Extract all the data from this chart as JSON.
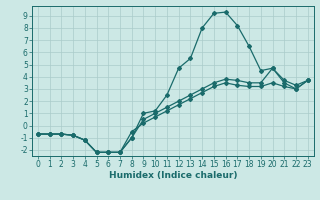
{
  "title": "",
  "xlabel": "Humidex (Indice chaleur)",
  "bg_color": "#cce8e5",
  "grid_color": "#aaccca",
  "line_color": "#1a6b6b",
  "xlim": [
    -0.5,
    23.5
  ],
  "ylim": [
    -2.5,
    9.8
  ],
  "xticks": [
    0,
    1,
    2,
    3,
    4,
    5,
    6,
    7,
    8,
    9,
    10,
    11,
    12,
    13,
    14,
    15,
    16,
    17,
    18,
    19,
    20,
    21,
    22,
    23
  ],
  "yticks": [
    -2,
    -1,
    0,
    1,
    2,
    3,
    4,
    5,
    6,
    7,
    8,
    9
  ],
  "line1_x": [
    0,
    1,
    2,
    3,
    4,
    5,
    6,
    7,
    8,
    9,
    10,
    11,
    12,
    13,
    14,
    15,
    16,
    17,
    18,
    19,
    20,
    21,
    22,
    23
  ],
  "line1_y": [
    -0.7,
    -0.7,
    -0.7,
    -0.8,
    -1.2,
    -2.2,
    -2.2,
    -2.2,
    -1.0,
    1.0,
    1.2,
    2.5,
    4.7,
    5.5,
    8.0,
    9.2,
    9.3,
    8.2,
    6.5,
    4.5,
    4.7,
    3.7,
    3.3,
    3.7
  ],
  "line2_x": [
    0,
    1,
    2,
    3,
    4,
    5,
    6,
    7,
    8,
    9,
    10,
    11,
    12,
    13,
    14,
    15,
    16,
    17,
    18,
    19,
    20,
    21,
    22,
    23
  ],
  "line2_y": [
    -0.7,
    -0.7,
    -0.7,
    -0.8,
    -1.2,
    -2.2,
    -2.2,
    -2.2,
    -1.0,
    0.5,
    1.0,
    1.5,
    2.0,
    2.5,
    3.0,
    3.5,
    3.8,
    3.7,
    3.5,
    3.5,
    4.7,
    3.5,
    3.0,
    3.7
  ],
  "line3_x": [
    0,
    1,
    2,
    3,
    4,
    5,
    6,
    7,
    8,
    9,
    10,
    11,
    12,
    13,
    14,
    15,
    16,
    17,
    18,
    19,
    20,
    21,
    22,
    23
  ],
  "line3_y": [
    -0.7,
    -0.7,
    -0.7,
    -0.8,
    -1.2,
    -2.2,
    -2.2,
    -2.2,
    -0.5,
    0.2,
    0.7,
    1.2,
    1.7,
    2.2,
    2.7,
    3.2,
    3.5,
    3.3,
    3.2,
    3.2,
    3.5,
    3.2,
    3.0,
    3.7
  ],
  "marker": "D",
  "marker_size": 2.0,
  "line_width": 0.9,
  "tick_fontsize": 5.5,
  "xlabel_fontsize": 6.5
}
